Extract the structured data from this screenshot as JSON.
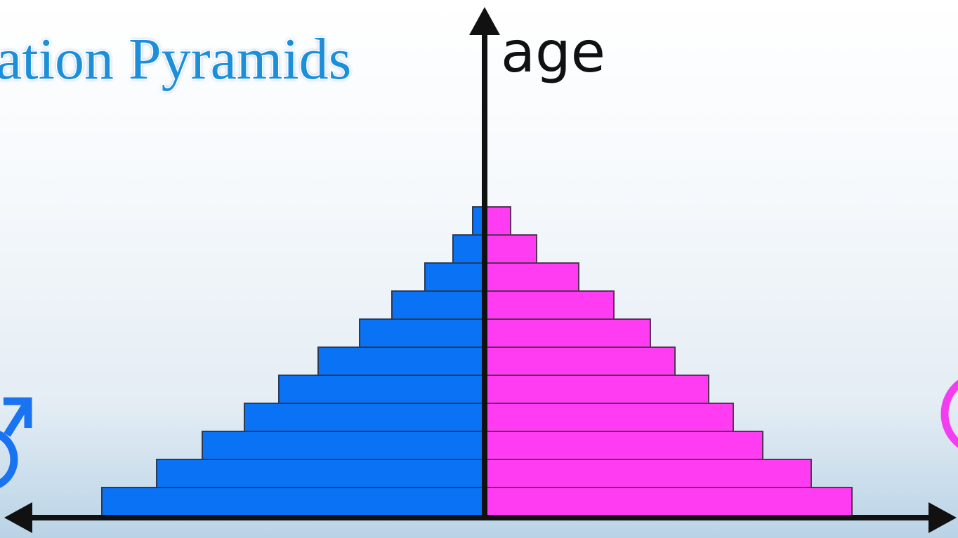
{
  "title": "ation Pyramids",
  "axis_label": "age"
}
